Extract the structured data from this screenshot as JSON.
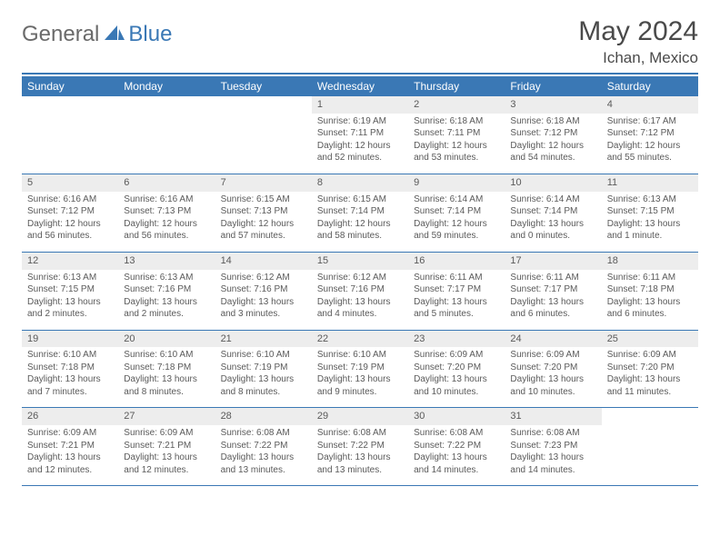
{
  "brand": {
    "part1": "General",
    "part2": "Blue"
  },
  "title": "May 2024",
  "location": "Ichan, Mexico",
  "colors": {
    "accent": "#3a78b5",
    "header_text": "#ffffff",
    "daynum_bg": "#ededed",
    "body_text": "#5a5a5a",
    "title_text": "#4a4a4a",
    "logo_gray": "#6a6a6a"
  },
  "weekdays": [
    "Sunday",
    "Monday",
    "Tuesday",
    "Wednesday",
    "Thursday",
    "Friday",
    "Saturday"
  ],
  "weeks": [
    [
      null,
      null,
      null,
      {
        "n": "1",
        "sr": "6:19 AM",
        "ss": "7:11 PM",
        "dl": "12 hours and 52 minutes."
      },
      {
        "n": "2",
        "sr": "6:18 AM",
        "ss": "7:11 PM",
        "dl": "12 hours and 53 minutes."
      },
      {
        "n": "3",
        "sr": "6:18 AM",
        "ss": "7:12 PM",
        "dl": "12 hours and 54 minutes."
      },
      {
        "n": "4",
        "sr": "6:17 AM",
        "ss": "7:12 PM",
        "dl": "12 hours and 55 minutes."
      }
    ],
    [
      {
        "n": "5",
        "sr": "6:16 AM",
        "ss": "7:12 PM",
        "dl": "12 hours and 56 minutes."
      },
      {
        "n": "6",
        "sr": "6:16 AM",
        "ss": "7:13 PM",
        "dl": "12 hours and 56 minutes."
      },
      {
        "n": "7",
        "sr": "6:15 AM",
        "ss": "7:13 PM",
        "dl": "12 hours and 57 minutes."
      },
      {
        "n": "8",
        "sr": "6:15 AM",
        "ss": "7:14 PM",
        "dl": "12 hours and 58 minutes."
      },
      {
        "n": "9",
        "sr": "6:14 AM",
        "ss": "7:14 PM",
        "dl": "12 hours and 59 minutes."
      },
      {
        "n": "10",
        "sr": "6:14 AM",
        "ss": "7:14 PM",
        "dl": "13 hours and 0 minutes."
      },
      {
        "n": "11",
        "sr": "6:13 AM",
        "ss": "7:15 PM",
        "dl": "13 hours and 1 minute."
      }
    ],
    [
      {
        "n": "12",
        "sr": "6:13 AM",
        "ss": "7:15 PM",
        "dl": "13 hours and 2 minutes."
      },
      {
        "n": "13",
        "sr": "6:13 AM",
        "ss": "7:16 PM",
        "dl": "13 hours and 2 minutes."
      },
      {
        "n": "14",
        "sr": "6:12 AM",
        "ss": "7:16 PM",
        "dl": "13 hours and 3 minutes."
      },
      {
        "n": "15",
        "sr": "6:12 AM",
        "ss": "7:16 PM",
        "dl": "13 hours and 4 minutes."
      },
      {
        "n": "16",
        "sr": "6:11 AM",
        "ss": "7:17 PM",
        "dl": "13 hours and 5 minutes."
      },
      {
        "n": "17",
        "sr": "6:11 AM",
        "ss": "7:17 PM",
        "dl": "13 hours and 6 minutes."
      },
      {
        "n": "18",
        "sr": "6:11 AM",
        "ss": "7:18 PM",
        "dl": "13 hours and 6 minutes."
      }
    ],
    [
      {
        "n": "19",
        "sr": "6:10 AM",
        "ss": "7:18 PM",
        "dl": "13 hours and 7 minutes."
      },
      {
        "n": "20",
        "sr": "6:10 AM",
        "ss": "7:18 PM",
        "dl": "13 hours and 8 minutes."
      },
      {
        "n": "21",
        "sr": "6:10 AM",
        "ss": "7:19 PM",
        "dl": "13 hours and 8 minutes."
      },
      {
        "n": "22",
        "sr": "6:10 AM",
        "ss": "7:19 PM",
        "dl": "13 hours and 9 minutes."
      },
      {
        "n": "23",
        "sr": "6:09 AM",
        "ss": "7:20 PM",
        "dl": "13 hours and 10 minutes."
      },
      {
        "n": "24",
        "sr": "6:09 AM",
        "ss": "7:20 PM",
        "dl": "13 hours and 10 minutes."
      },
      {
        "n": "25",
        "sr": "6:09 AM",
        "ss": "7:20 PM",
        "dl": "13 hours and 11 minutes."
      }
    ],
    [
      {
        "n": "26",
        "sr": "6:09 AM",
        "ss": "7:21 PM",
        "dl": "13 hours and 12 minutes."
      },
      {
        "n": "27",
        "sr": "6:09 AM",
        "ss": "7:21 PM",
        "dl": "13 hours and 12 minutes."
      },
      {
        "n": "28",
        "sr": "6:08 AM",
        "ss": "7:22 PM",
        "dl": "13 hours and 13 minutes."
      },
      {
        "n": "29",
        "sr": "6:08 AM",
        "ss": "7:22 PM",
        "dl": "13 hours and 13 minutes."
      },
      {
        "n": "30",
        "sr": "6:08 AM",
        "ss": "7:22 PM",
        "dl": "13 hours and 14 minutes."
      },
      {
        "n": "31",
        "sr": "6:08 AM",
        "ss": "7:23 PM",
        "dl": "13 hours and 14 minutes."
      },
      null
    ]
  ],
  "labels": {
    "sunrise": "Sunrise:",
    "sunset": "Sunset:",
    "daylight": "Daylight:"
  }
}
